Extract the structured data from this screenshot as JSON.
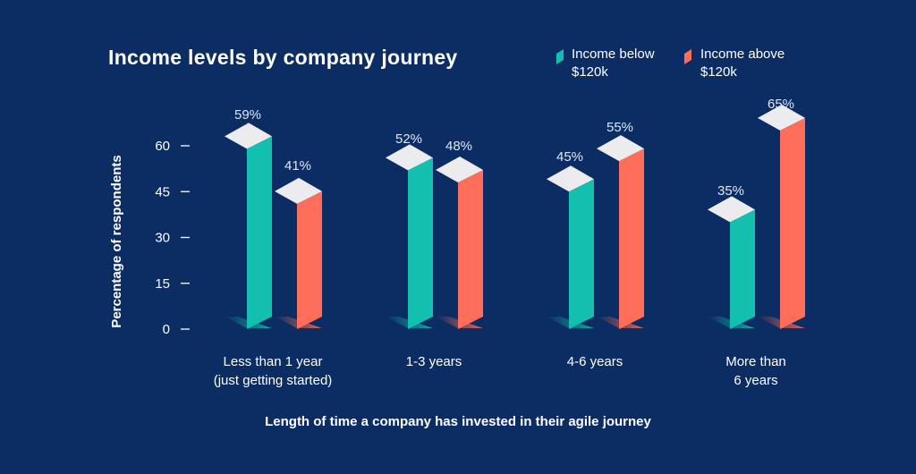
{
  "chart_data": {
    "type": "bar",
    "title": "Income levels by company journey",
    "xlabel": "Length of time a company has invested in their agile journey",
    "ylabel": "Percentage of respondents",
    "ylim": [
      0,
      60
    ],
    "yticks": [
      "0",
      "15",
      "30",
      "45",
      "60"
    ],
    "categories": [
      [
        "Less than 1 year",
        "(just getting started)"
      ],
      [
        "1-3 years"
      ],
      [
        "4-6 years"
      ],
      [
        "More than",
        "6 years"
      ]
    ],
    "series": [
      {
        "name": [
          "Income below",
          "$120k"
        ],
        "color": "#13bfae",
        "values": [
          59,
          52,
          45,
          35
        ],
        "labels": [
          "59%",
          "52%",
          "45%",
          "35%"
        ]
      },
      {
        "name": [
          "Income above",
          "$120k"
        ],
        "color": "#ff6e5a",
        "values": [
          41,
          48,
          55,
          65
        ],
        "labels": [
          "41%",
          "48%",
          "55%",
          "65%"
        ]
      }
    ],
    "legend_position": "top-right",
    "grid": false
  }
}
